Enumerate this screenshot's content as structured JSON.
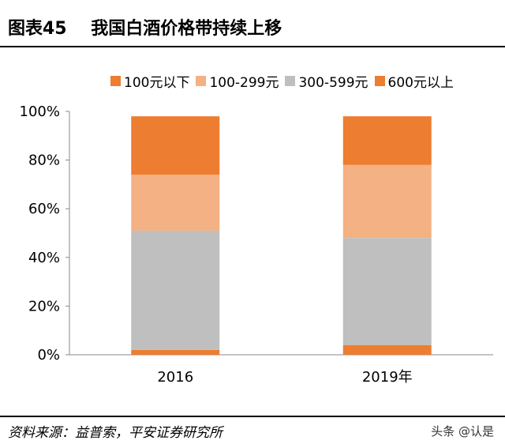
{
  "header": {
    "figure_label": "图表45",
    "title": "我国白酒价格带持续上移"
  },
  "footer": {
    "source": "资料来源：益普索，平安证券研究所",
    "watermark": "头条 @认是"
  },
  "chart_data": {
    "type": "bar",
    "stacked": true,
    "categories": [
      "2016",
      "2019年"
    ],
    "series": [
      {
        "name": "100元以下",
        "values": [
          0.02,
          0.04
        ],
        "color": "#ED7D31"
      },
      {
        "name": "100-299元",
        "values": [
          0.23,
          0.3
        ],
        "color": "#F4B183"
      },
      {
        "name": "300-599元",
        "values": [
          0.49,
          0.44
        ],
        "color": "#BFBFBF"
      },
      {
        "name": "600元以上",
        "values": [
          0.24,
          0.2
        ],
        "color": "#ED7D31"
      }
    ],
    "stack_order_bottom_to_top": [
      "100元以下",
      "300-599元",
      "100-299元",
      "600元以上"
    ],
    "ylim": [
      0,
      1
    ],
    "yticks": [
      "0%",
      "20%",
      "40%",
      "60%",
      "80%",
      "100%"
    ],
    "legend_position": "top",
    "grid": false
  }
}
